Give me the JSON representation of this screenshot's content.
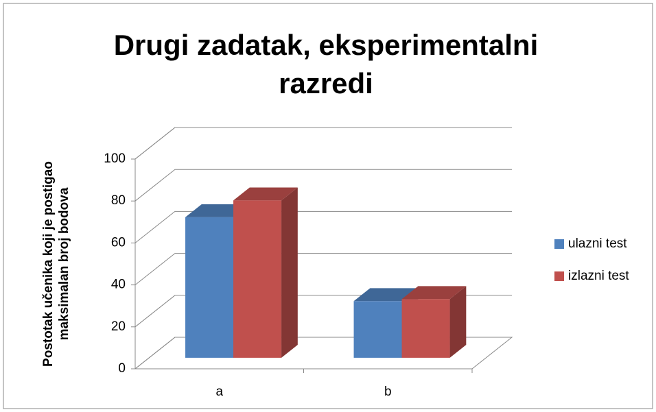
{
  "chart_data": {
    "type": "bar3d",
    "title": "Drugi zadatak, eksperimentalni razredi",
    "y_label": "Postotak učenika koji je postigao maksimalan broj bodova",
    "categories": [
      "a",
      "b"
    ],
    "series": [
      {
        "name": "ulazni test",
        "color": "#4f81bd",
        "values": [
          67,
          27
        ]
      },
      {
        "name": "izlazni test",
        "color": "#c0504d",
        "values": [
          75,
          28
        ]
      }
    ],
    "ylim": [
      0,
      100
    ],
    "yticks": [
      0,
      20,
      40,
      60,
      80,
      100
    ],
    "grid": true,
    "legend": "right"
  }
}
